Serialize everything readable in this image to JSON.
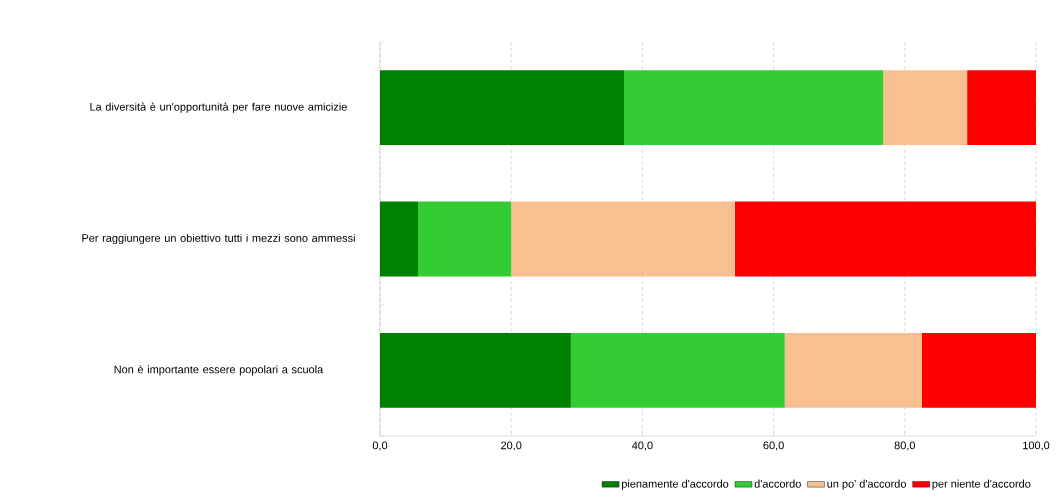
{
  "chart_data": {
    "type": "bar",
    "orientation": "horizontal",
    "stacked": true,
    "categories": [
      "La diversità è un'opportunità per fare nuove amicizie",
      "Per raggiungere un obiettivo tutti i mezzi sono ammessi",
      "Non è importante essere popolari a scuola"
    ],
    "series": [
      {
        "name": "pienamente d'accordo",
        "color": "#008000",
        "values": [
          37.2,
          5.8,
          29.1
        ]
      },
      {
        "name": "d'accordo",
        "color": "#33cc33",
        "values": [
          39.5,
          14.2,
          32.6
        ]
      },
      {
        "name": "un po' d'accordo",
        "color": "#f8c090",
        "values": [
          12.8,
          34.1,
          20.9
        ]
      },
      {
        "name": "per niente d'accordo",
        "color": "#ff0000",
        "values": [
          10.5,
          45.9,
          17.4
        ]
      }
    ],
    "xlim": [
      0,
      100
    ],
    "xticks": [
      {
        "value": 0,
        "label": "0,0"
      },
      {
        "value": 20,
        "label": "20,0"
      },
      {
        "value": 40,
        "label": "40,0"
      },
      {
        "value": 60,
        "label": "60,0"
      },
      {
        "value": 80,
        "label": "80,0"
      },
      {
        "value": 100,
        "label": "100,0"
      }
    ],
    "grid": "x",
    "legend": "bottom"
  }
}
